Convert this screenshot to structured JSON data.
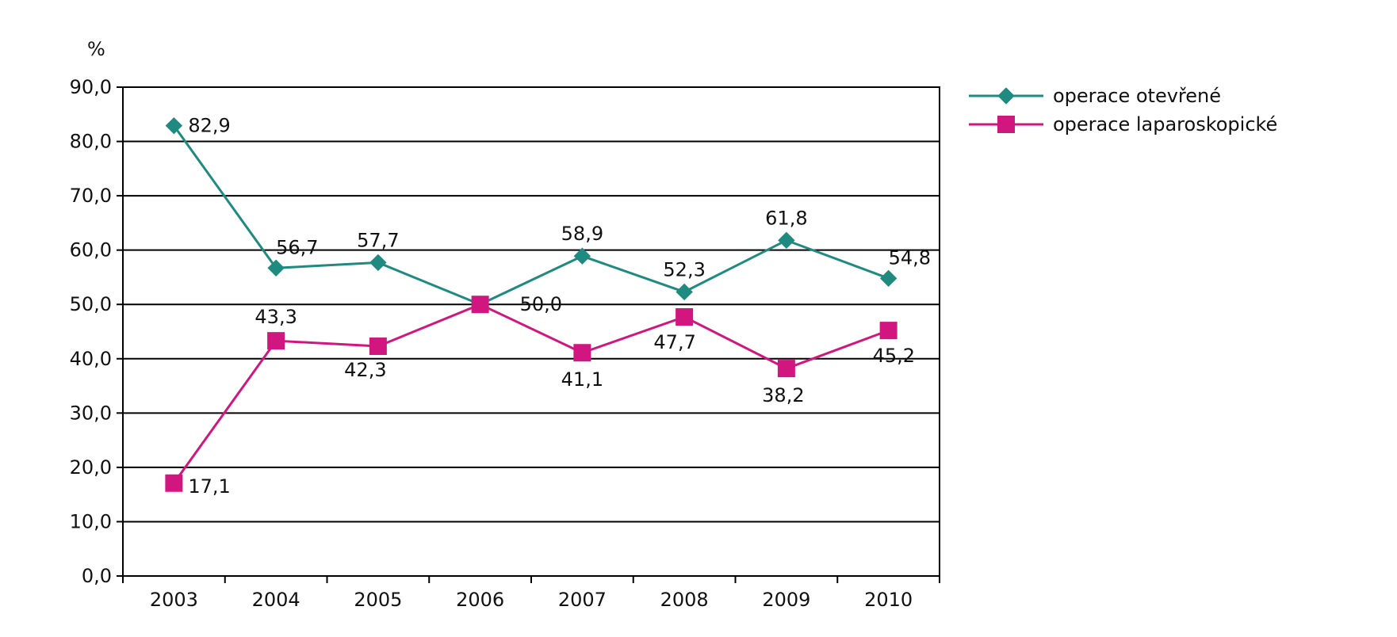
{
  "chart_data": {
    "type": "line",
    "title": "",
    "unit_label": "%",
    "xlabel": "",
    "ylabel": "",
    "ylim": [
      0,
      90
    ],
    "y_ticks": [
      0,
      10,
      20,
      30,
      40,
      50,
      60,
      70,
      80,
      90
    ],
    "y_tick_labels": [
      "0,0",
      "10,0",
      "20,0",
      "30,0",
      "40,0",
      "50,0",
      "60,0",
      "70,0",
      "80,0",
      "90,0"
    ],
    "categories": [
      "2003",
      "2004",
      "2005",
      "2006",
      "2007",
      "2008",
      "2009",
      "2010"
    ],
    "grid": true,
    "legend_position": "top-right",
    "series": [
      {
        "name": "operace otevřené",
        "color": "#1f8a80",
        "marker": "diamond",
        "values": [
          82.9,
          56.7,
          57.7,
          50.0,
          58.9,
          52.3,
          61.8,
          54.8
        ],
        "labels": [
          "82,9",
          "56,7",
          "57,7",
          "",
          "58,9",
          "52,3",
          "61,8",
          "54,8"
        ]
      },
      {
        "name": "operace laparoskopické",
        "color": "#d1167f",
        "marker": "square",
        "values": [
          17.1,
          43.3,
          42.3,
          50.0,
          41.1,
          47.7,
          38.2,
          45.2
        ],
        "labels": [
          "17,1",
          "43,3",
          "42,3",
          "50,0",
          "41,1",
          "47,7",
          "38,2",
          "45,2"
        ]
      }
    ]
  }
}
